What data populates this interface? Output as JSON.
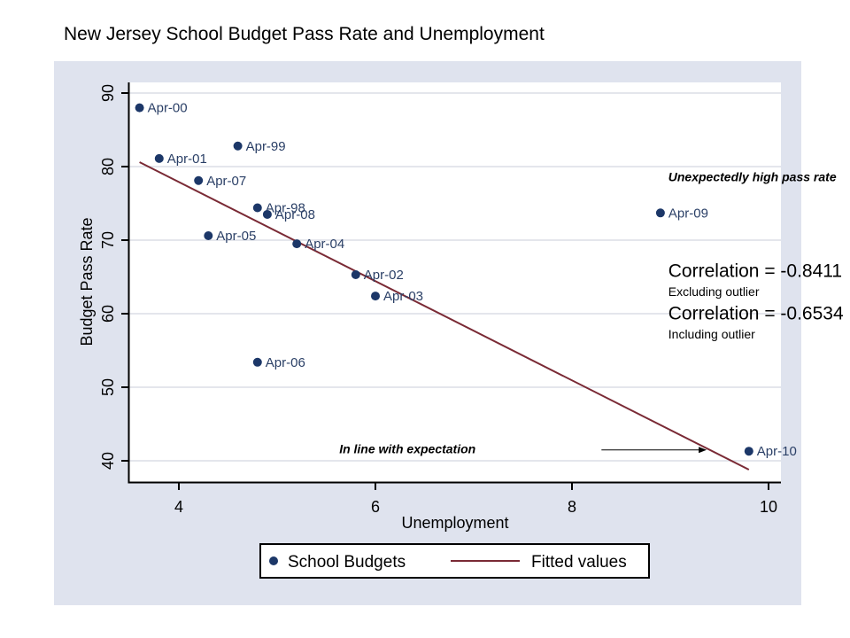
{
  "chart_data": {
    "type": "scatter",
    "title": "New Jersey School Budget Pass Rate and Unemployment",
    "xlabel": "Unemployment",
    "ylabel": "Budget Pass Rate",
    "xlim": [
      3.5,
      10.2
    ],
    "ylim": [
      37,
      92
    ],
    "xticks": [
      4,
      6,
      8,
      10
    ],
    "yticks": [
      40,
      50,
      60,
      70,
      80,
      90
    ],
    "grid": "horizontal",
    "legend_position": "bottom",
    "series": [
      {
        "name": "School Budgets",
        "kind": "scatter",
        "color": "#1c3768",
        "points": [
          {
            "label": "Apr-98",
            "x": 4.8,
            "y": 74.4
          },
          {
            "label": "Apr-99",
            "x": 4.6,
            "y": 82.8
          },
          {
            "label": "Apr-00",
            "x": 3.6,
            "y": 88.0
          },
          {
            "label": "Apr-01",
            "x": 3.8,
            "y": 81.1
          },
          {
            "label": "Apr-02",
            "x": 5.8,
            "y": 65.3
          },
          {
            "label": "Apr-03",
            "x": 6.0,
            "y": 62.4
          },
          {
            "label": "Apr-04",
            "x": 5.2,
            "y": 69.5
          },
          {
            "label": "Apr-05",
            "x": 4.3,
            "y": 70.6
          },
          {
            "label": "Apr-06",
            "x": 4.8,
            "y": 53.4
          },
          {
            "label": "Apr-07",
            "x": 4.2,
            "y": 78.1
          },
          {
            "label": "Apr-08",
            "x": 4.9,
            "y": 73.5
          },
          {
            "label": "Apr-09",
            "x": 8.9,
            "y": 73.7
          },
          {
            "label": "Apr-10",
            "x": 9.8,
            "y": 41.3
          }
        ]
      },
      {
        "name": "Fitted values",
        "kind": "line",
        "color": "#7a2a35",
        "x": [
          3.6,
          9.8
        ],
        "y": [
          80.6,
          38.8
        ]
      }
    ],
    "annotations": [
      {
        "text": "Unexpectedly high pass rate",
        "style": "bold-italic",
        "x": 8.98,
        "y": 78.0
      },
      {
        "text": "Correlation = -0.8411",
        "style": "large",
        "x": 8.98,
        "y": 65.0
      },
      {
        "text": "Excluding outlier",
        "style": "small",
        "x": 8.98,
        "y": 62.4
      },
      {
        "text": "Correlation = -0.6534",
        "style": "large",
        "x": 8.98,
        "y": 59.2
      },
      {
        "text": "Including outlier",
        "style": "small",
        "x": 8.98,
        "y": 56.6
      },
      {
        "text": "In line with expectation",
        "style": "bold-italic",
        "x": 7.02,
        "y": 41.0,
        "anchor": "end",
        "arrow_to": {
          "x": 9.37,
          "y": 41.0
        },
        "arrow_from": {
          "x": 8.3,
          "y": 41.0
        }
      }
    ]
  }
}
